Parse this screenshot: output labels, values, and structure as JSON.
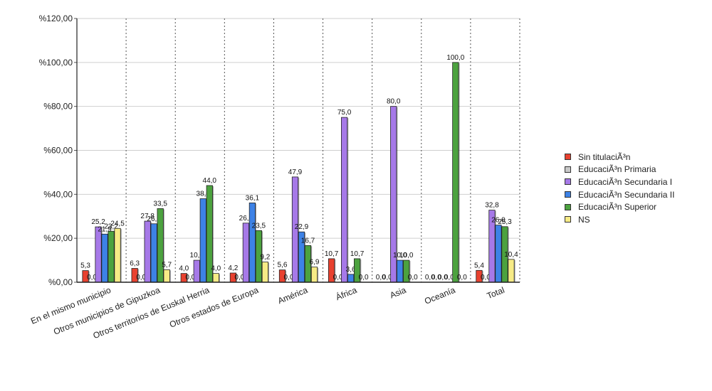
{
  "chart_data": {
    "type": "bar",
    "categories": [
      "En el mismo municipio",
      "Otros municipios de Gipuzkoa",
      "Otros territorios de Euskal Herria",
      "Otros estados de Europa",
      "América",
      "África",
      "Asia",
      "Oceanía",
      "Total"
    ],
    "series": [
      {
        "name": "Sin titulaciÃ³n",
        "color": "#e8412f",
        "values": [
          5.3,
          6.3,
          4.0,
          4.2,
          5.6,
          10.7,
          0.0,
          0.0,
          5.4
        ]
      },
      {
        "name": "EducaciÃ³n Primaria",
        "color": "#c8c8c8",
        "values": [
          0.0,
          0.0,
          0.0,
          0.0,
          0.0,
          0.0,
          0.0,
          0.0,
          0.0
        ]
      },
      {
        "name": "EducaciÃ³n Secundaria I",
        "color": "#a679e8",
        "values": [
          25.2,
          27.8,
          10.0,
          26.9,
          47.9,
          75.0,
          80.0,
          0.0,
          32.8
        ]
      },
      {
        "name": "EducaciÃ³n Secundaria II",
        "color": "#3d82e6",
        "values": [
          21.9,
          26.6,
          38.0,
          36.1,
          22.9,
          3.6,
          10.0,
          0.0,
          26.0
        ]
      },
      {
        "name": "EducaciÃ³n Superior",
        "color": "#4ca23f",
        "values": [
          23.2,
          33.5,
          44.0,
          23.5,
          16.7,
          10.7,
          10.0,
          100.0,
          25.3
        ]
      },
      {
        "name": "NS",
        "color": "#f7eb86",
        "values": [
          24.5,
          5.7,
          4.0,
          9.2,
          6.9,
          0.0,
          0.0,
          0.0,
          10.4
        ]
      }
    ],
    "data_labels": [
      [
        "5,3",
        "6,3",
        "4,0",
        "4,2",
        "5,6",
        "10,7",
        "0,0",
        "0,0",
        "5,4"
      ],
      [
        "0,0",
        "0,0",
        "0,0",
        "0,0",
        "0,0",
        "0,0",
        "0,0",
        "0,0",
        "0,0"
      ],
      [
        "25,2",
        "27,8",
        "10,0",
        "26,9",
        "47,9",
        "75,0",
        "80,0",
        "0,0",
        "32,8"
      ],
      [
        "21,9",
        "26,6",
        "38,0",
        "36,1",
        "22,9",
        "3,6",
        "10,0",
        "0,0",
        "26,0"
      ],
      [
        "23,2",
        "33,5",
        "44,0",
        "23,5",
        "16,7",
        "10,7",
        "10,0",
        "100,0",
        "25,3"
      ],
      [
        "24,5",
        "5,7",
        "4,0",
        "9,2",
        "6,9",
        "0,0",
        "0,0",
        "0,0",
        "10,4"
      ]
    ],
    "y_tick_labels": [
      "%0,00",
      "%20,00",
      "%40,00",
      "%60,00",
      "%80,00",
      "%100,00",
      "%120,00"
    ],
    "ylim": [
      0,
      120
    ],
    "title": "",
    "xlabel": "",
    "ylabel": "",
    "grid": true,
    "legend_position": "right"
  }
}
